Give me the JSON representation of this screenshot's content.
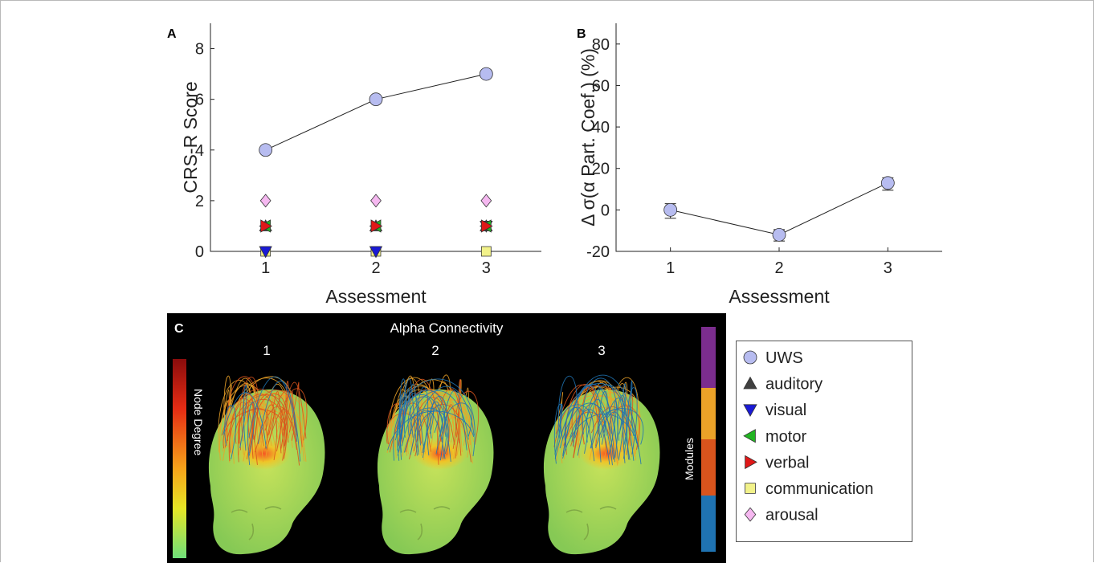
{
  "panels": {
    "a_label": "A",
    "b_label": "B",
    "c_label": "C"
  },
  "chart_data": [
    {
      "type": "line",
      "panel": "A",
      "ylabel": "CRS-R Score",
      "xlabel": "Assessment",
      "x": [
        1,
        2,
        3
      ],
      "xlim": [
        0.5,
        3.5
      ],
      "ylim": [
        0,
        9
      ],
      "yticks": [
        0,
        2,
        4,
        6,
        8
      ],
      "grid": false,
      "series": [
        {
          "name": "UWS",
          "marker": "circle",
          "color": "#b7bcf0",
          "line": true,
          "values": [
            4,
            6,
            7
          ]
        },
        {
          "name": "auditory",
          "marker": "triangle-up",
          "color": "#404040",
          "line": false,
          "values": [
            1,
            1,
            1
          ]
        },
        {
          "name": "visual",
          "marker": "triangle-down",
          "color": "#1a1ad6",
          "line": false,
          "values": [
            0,
            0,
            1
          ]
        },
        {
          "name": "motor",
          "marker": "triangle-left",
          "color": "#22b422",
          "line": false,
          "values": [
            1,
            1,
            1
          ]
        },
        {
          "name": "verbal",
          "marker": "triangle-right",
          "color": "#e01818",
          "line": false,
          "values": [
            1,
            1,
            1
          ]
        },
        {
          "name": "communication",
          "marker": "square",
          "color": "#f2f28a",
          "line": false,
          "values": [
            0,
            0,
            0
          ]
        },
        {
          "name": "arousal",
          "marker": "diamond",
          "color": "#f5b8f0",
          "line": false,
          "values": [
            2,
            2,
            2
          ]
        }
      ]
    },
    {
      "type": "line",
      "panel": "B",
      "ylabel": "Δ σ(α Part. Coef.) (%)",
      "xlabel": "Assessment",
      "x": [
        1,
        2,
        3
      ],
      "xlim": [
        0.5,
        3.5
      ],
      "ylim": [
        -20,
        90
      ],
      "yticks": [
        -20,
        0,
        20,
        40,
        60,
        80
      ],
      "grid": false,
      "series": [
        {
          "name": "UWS",
          "marker": "circle",
          "color": "#b7bcf0",
          "values": [
            0,
            -12,
            13
          ],
          "err_low": [
            -4,
            -15,
            9.5
          ],
          "err_high": [
            3,
            -9.5,
            15.5
          ]
        }
      ]
    },
    {
      "type": "other",
      "panel": "C",
      "title": "Alpha Connectivity",
      "head_labels": [
        "1",
        "2",
        "3"
      ],
      "left_colorbar_label": "Node Degree",
      "right_colorbar_label": "Modules",
      "module_colors": [
        "#7b2d8e",
        "#eba228",
        "#d9541d",
        "#1f73b2"
      ]
    }
  ],
  "legend": {
    "placement": "right of panel C",
    "entries": [
      {
        "name": "UWS",
        "marker": "circle",
        "color": "#b7bcf0"
      },
      {
        "name": "auditory",
        "marker": "triangle-up",
        "color": "#404040"
      },
      {
        "name": "visual",
        "marker": "triangle-down",
        "color": "#1a1ad6"
      },
      {
        "name": "motor",
        "marker": "triangle-left",
        "color": "#22b422"
      },
      {
        "name": "verbal",
        "marker": "triangle-right",
        "color": "#e01818"
      },
      {
        "name": "communication",
        "marker": "square",
        "color": "#f2f28a"
      },
      {
        "name": "arousal",
        "marker": "diamond",
        "color": "#f5b8f0"
      }
    ]
  }
}
